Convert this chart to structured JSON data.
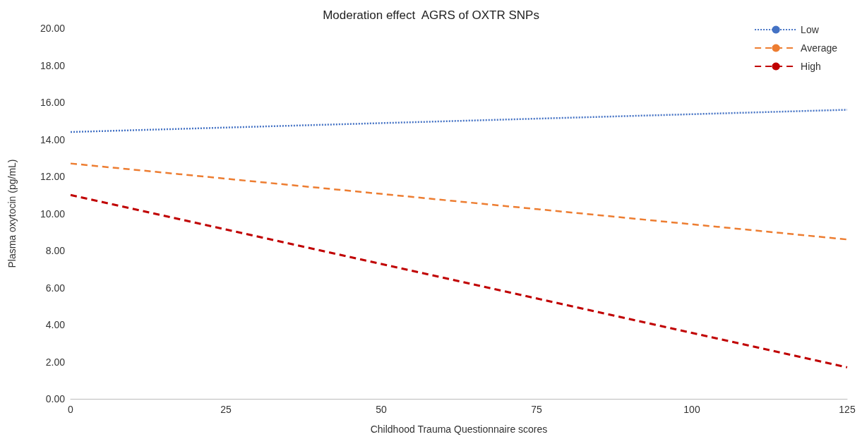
{
  "chart_data": {
    "type": "line",
    "title": "Moderation effect  AGRS of OXTR SNPs",
    "xlabel": "Childhood Trauma Questionnaire scores",
    "ylabel": "Plasma oxytocin (pg/mL)",
    "x": [
      0,
      125
    ],
    "series": [
      {
        "name": "Low",
        "color": "#4472c4",
        "values": [
          14.4,
          15.6
        ],
        "line_style": "dotted"
      },
      {
        "name": "Average",
        "color": "#ed7d31",
        "values": [
          12.7,
          8.6
        ],
        "line_style": "dashed"
      },
      {
        "name": "High",
        "color": "#c00000",
        "values": [
          11.0,
          1.7
        ],
        "line_style": "dashed"
      }
    ],
    "xlim": [
      0,
      125
    ],
    "xticks": [
      0,
      25,
      50,
      75,
      100,
      125
    ],
    "ylim": [
      0,
      20
    ],
    "yticks": [
      {
        "value": 0,
        "label": "0.00"
      },
      {
        "value": 2,
        "label": "2.00"
      },
      {
        "value": 4,
        "label": "4.00"
      },
      {
        "value": 6,
        "label": "6.00"
      },
      {
        "value": 8,
        "label": "8.00"
      },
      {
        "value": 10,
        "label": "10.00"
      },
      {
        "value": 12,
        "label": "12.00"
      },
      {
        "value": 14,
        "label": "14.00"
      },
      {
        "value": 16,
        "label": "16.00"
      },
      {
        "value": 18,
        "label": "18.00"
      },
      {
        "value": 20,
        "label": "20.00"
      }
    ],
    "grid": false,
    "legend": "top right",
    "marker": "none"
  }
}
